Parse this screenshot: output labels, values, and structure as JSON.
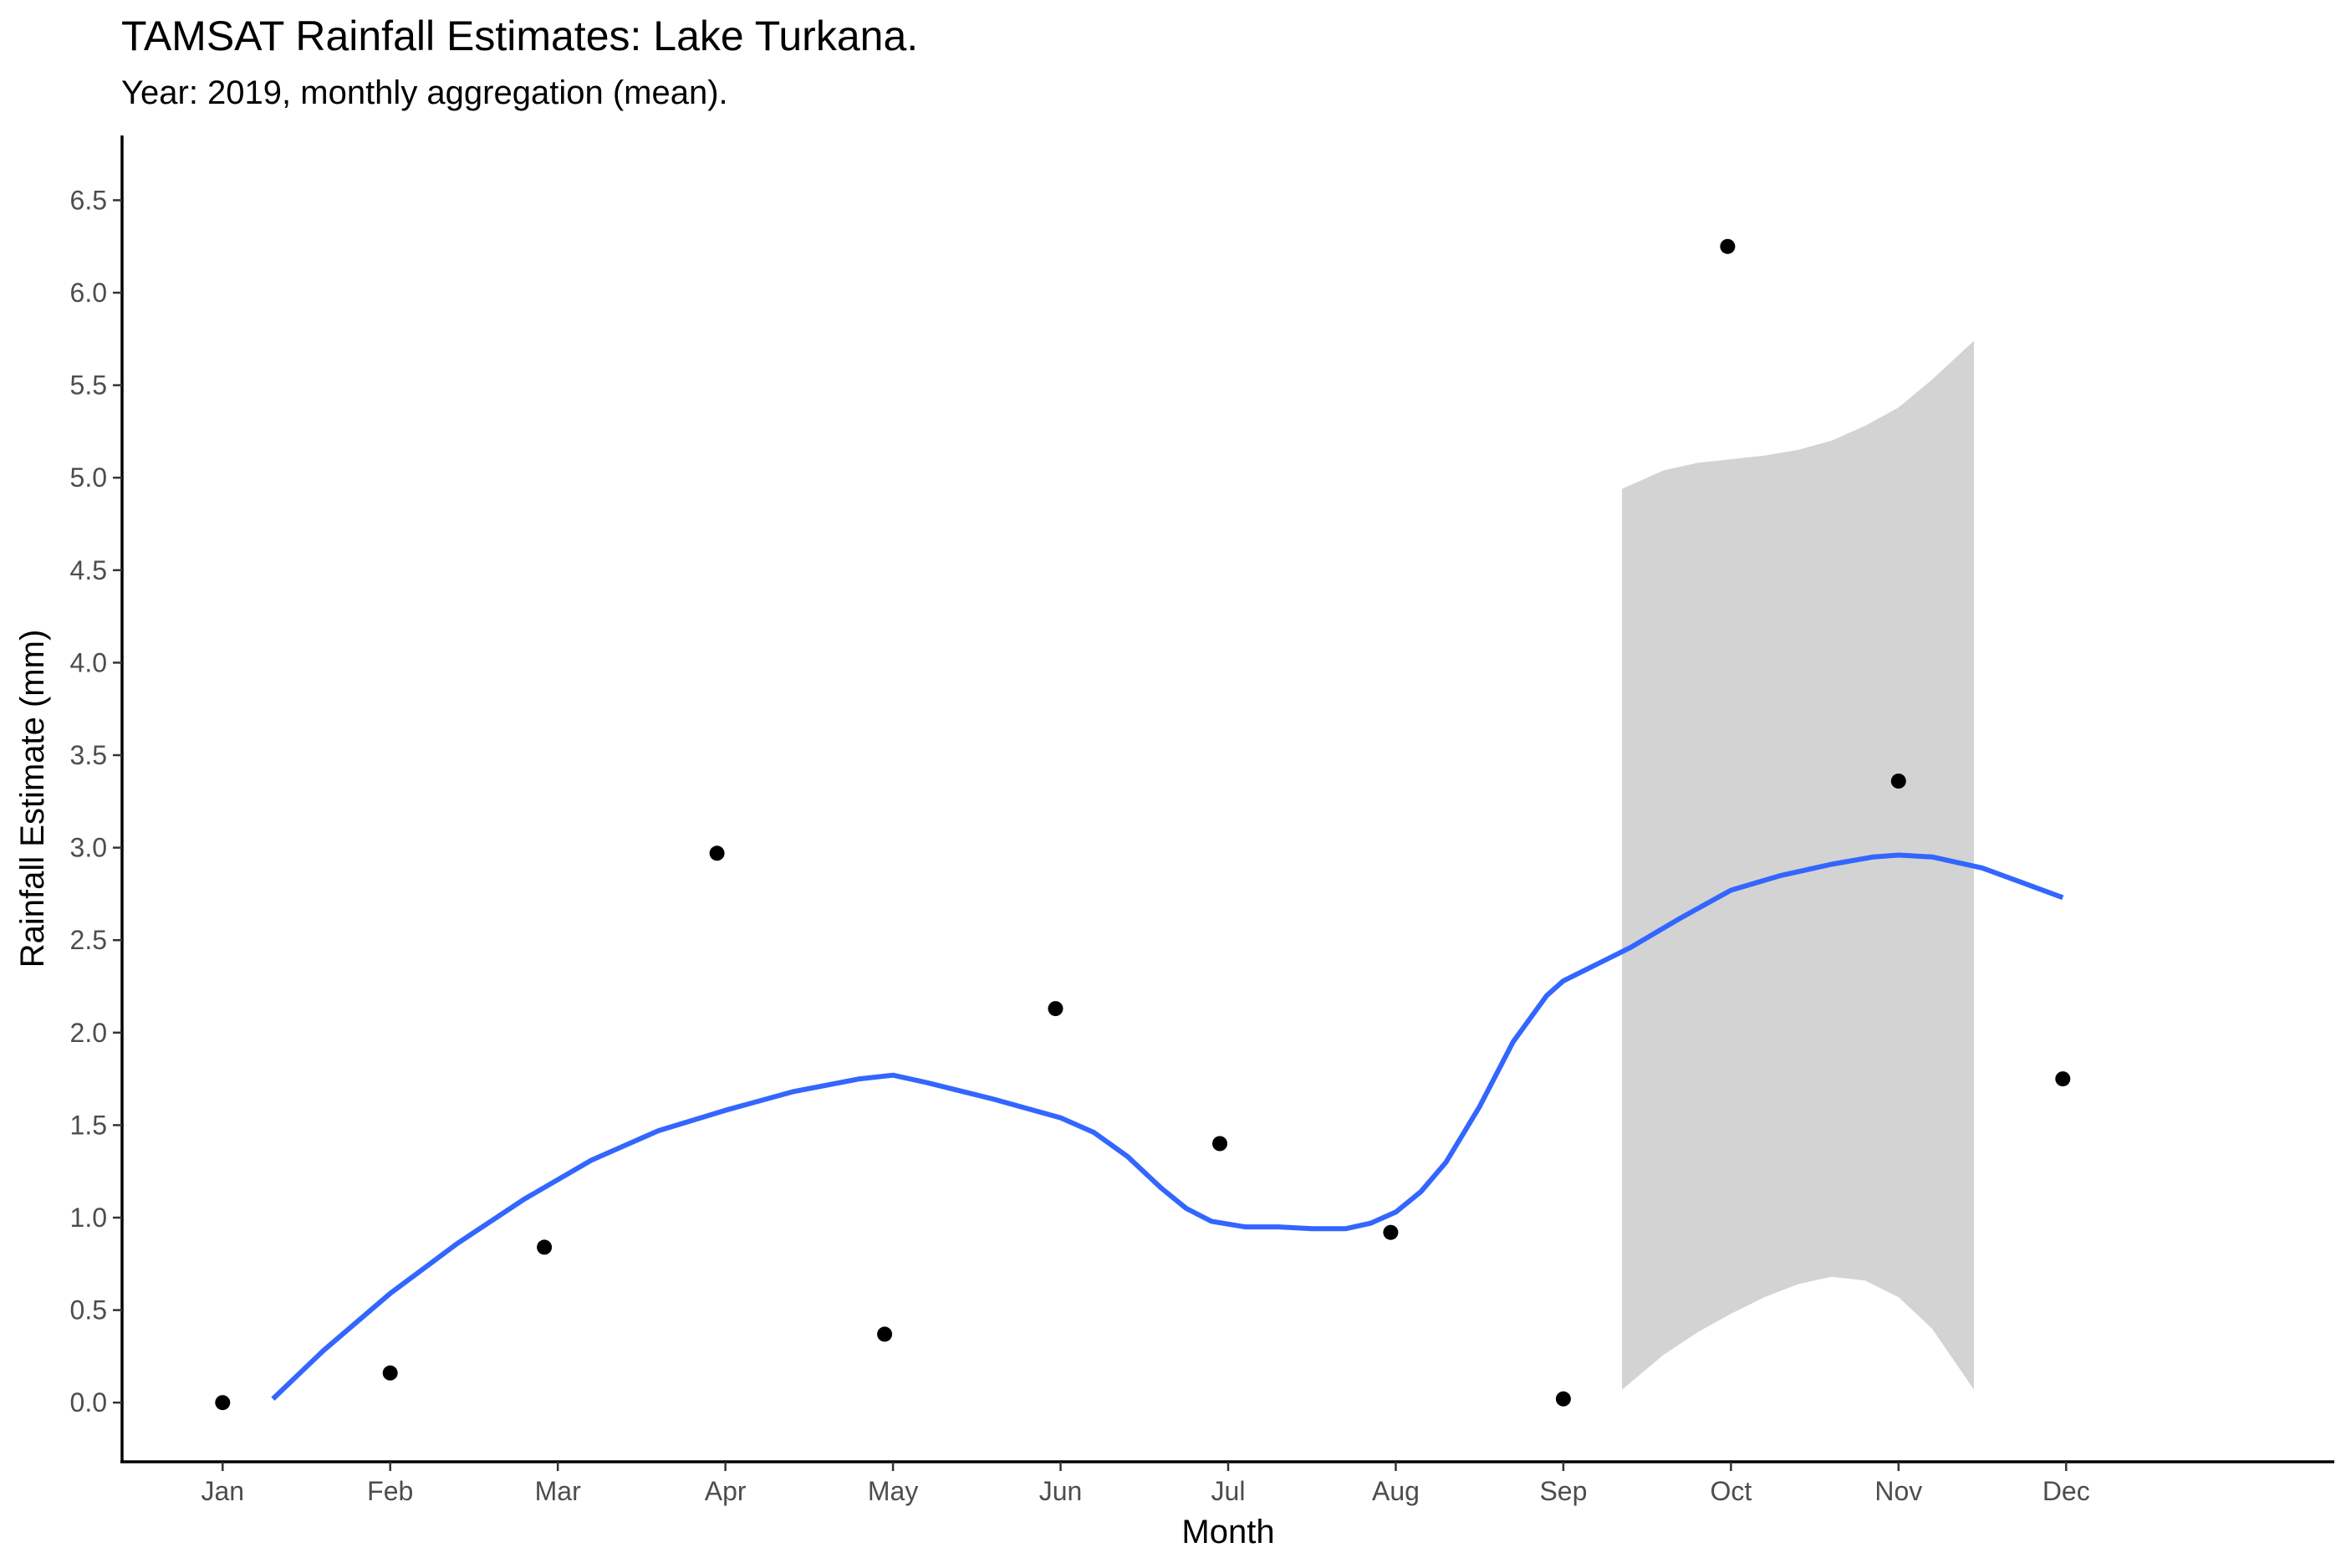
{
  "chart_data": {
    "type": "scatter",
    "title": "TAMSAT Rainfall Estimates: Lake Turkana.",
    "subtitle": "Year: 2019, monthly aggregation (mean).",
    "xlabel": "Month",
    "ylabel": "Rainfall Estimate (mm)",
    "categories": [
      "Jan",
      "Feb",
      "Mar",
      "Apr",
      "May",
      "Jun",
      "Jul",
      "Aug",
      "Sep",
      "Oct",
      "Nov",
      "Dec"
    ],
    "xlim": [
      0.4,
      13.6
    ],
    "ylim": [
      -0.32,
      6.85
    ],
    "yticks": [
      0.0,
      0.5,
      1.0,
      1.5,
      2.0,
      2.5,
      3.0,
      3.5,
      4.0,
      4.5,
      5.0,
      5.5,
      6.0,
      6.5
    ],
    "ytick_labels": [
      "0.0",
      "0.5",
      "1.0",
      "1.5",
      "2.0",
      "2.5",
      "3.0",
      "3.5",
      "4.0",
      "4.5",
      "5.0",
      "5.5",
      "6.0",
      "6.5"
    ],
    "grid": false,
    "points": [
      {
        "x": 1.0,
        "y": 0.0
      },
      {
        "x": 2.0,
        "y": 0.16
      },
      {
        "x": 2.92,
        "y": 0.84
      },
      {
        "x": 3.95,
        "y": 2.97
      },
      {
        "x": 4.95,
        "y": 0.37
      },
      {
        "x": 5.97,
        "y": 2.13
      },
      {
        "x": 6.95,
        "y": 1.4
      },
      {
        "x": 7.97,
        "y": 0.92
      },
      {
        "x": 9.0,
        "y": 0.02
      },
      {
        "x": 9.98,
        "y": 6.25
      },
      {
        "x": 11.0,
        "y": 3.36
      },
      {
        "x": 11.98,
        "y": 1.75
      }
    ],
    "smooth_line": {
      "color": "#3366FF",
      "x": [
        1.3,
        1.6,
        2.0,
        2.4,
        2.8,
        3.2,
        3.6,
        4.0,
        4.4,
        4.8,
        5.0,
        5.2,
        5.6,
        6.0,
        6.2,
        6.4,
        6.6,
        6.75,
        6.9,
        7.1,
        7.3,
        7.5,
        7.7,
        7.85,
        8.0,
        8.15,
        8.3,
        8.5,
        8.7,
        8.9,
        9.0,
        9.2,
        9.4,
        9.7,
        10.0,
        10.3,
        10.6,
        10.85,
        11.0,
        11.2,
        11.5,
        11.98
      ],
      "y": [
        0.02,
        0.28,
        0.59,
        0.86,
        1.1,
        1.31,
        1.47,
        1.58,
        1.68,
        1.75,
        1.77,
        1.73,
        1.64,
        1.54,
        1.46,
        1.33,
        1.16,
        1.05,
        0.98,
        0.95,
        0.95,
        0.94,
        0.94,
        0.97,
        1.03,
        1.14,
        1.3,
        1.6,
        1.95,
        2.2,
        2.28,
        2.37,
        2.46,
        2.62,
        2.77,
        2.85,
        2.91,
        2.95,
        2.96,
        2.95,
        2.89,
        2.73
      ]
    },
    "confidence_band": {
      "color": "#d3d3d3",
      "x": [
        9.35,
        9.6,
        9.8,
        10.0,
        10.2,
        10.4,
        10.6,
        10.8,
        11.0,
        11.2,
        11.45
      ],
      "upper": [
        4.94,
        5.04,
        5.08,
        5.1,
        5.12,
        5.15,
        5.2,
        5.28,
        5.38,
        5.53,
        5.74
      ],
      "lower": [
        0.07,
        0.26,
        0.38,
        0.48,
        0.57,
        0.64,
        0.68,
        0.66,
        0.57,
        0.4,
        0.07
      ]
    }
  }
}
